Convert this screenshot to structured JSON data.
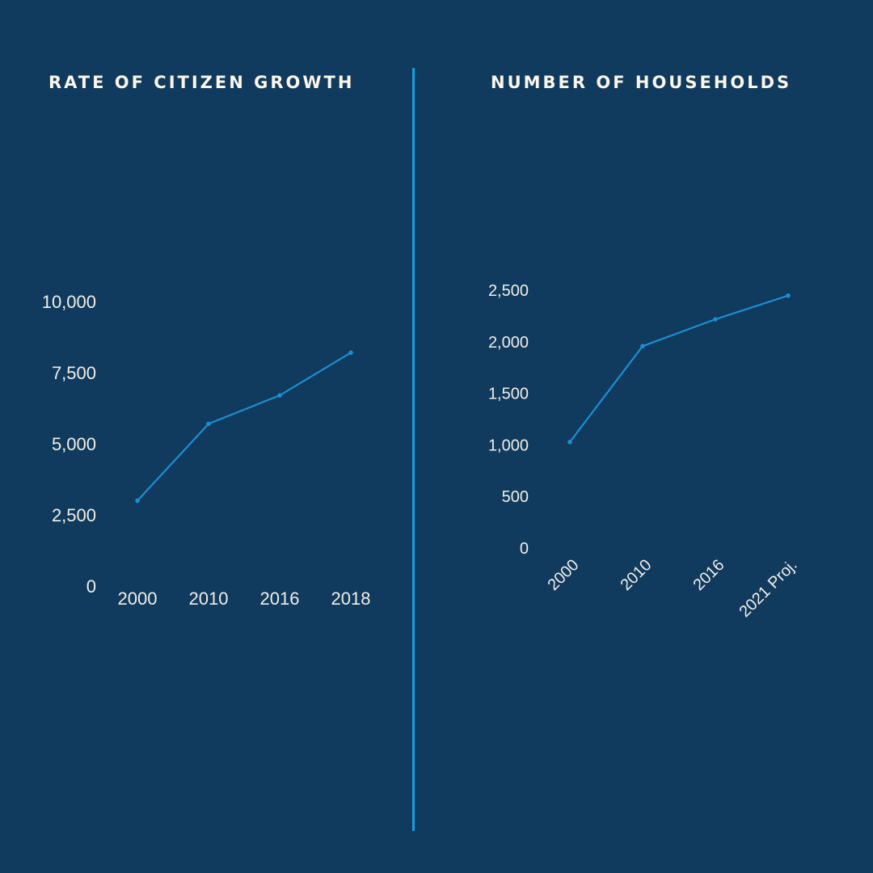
{
  "colors": {
    "background": "#103a5e",
    "line": "#1a8fd3",
    "divider": "#1a9de0",
    "text": "#f2efe6"
  },
  "chart_data": [
    {
      "type": "line",
      "title": "RATE OF CITIZEN GROWTH",
      "categories": [
        "2000",
        "2010",
        "2016",
        "2018"
      ],
      "values": [
        3000,
        5700,
        6700,
        8200
      ],
      "yticks": [
        "0",
        "2,500",
        "5,000",
        "7,500",
        "10,000"
      ],
      "ytick_values": [
        0,
        2500,
        5000,
        7500,
        10000
      ],
      "ylim": [
        0,
        10000
      ],
      "grid": false
    },
    {
      "type": "line",
      "title": "NUMBER OF HOUSEHOLDS",
      "categories": [
        "2000",
        "2010",
        "2016",
        "2021 Proj."
      ],
      "values": [
        1020,
        1950,
        2210,
        2440
      ],
      "yticks": [
        "0",
        "500",
        "1,000",
        "1,500",
        "2,000",
        "2,500"
      ],
      "ytick_values": [
        0,
        500,
        1000,
        1500,
        2000,
        2500
      ],
      "ylim": [
        0,
        2500
      ],
      "grid": false
    }
  ]
}
